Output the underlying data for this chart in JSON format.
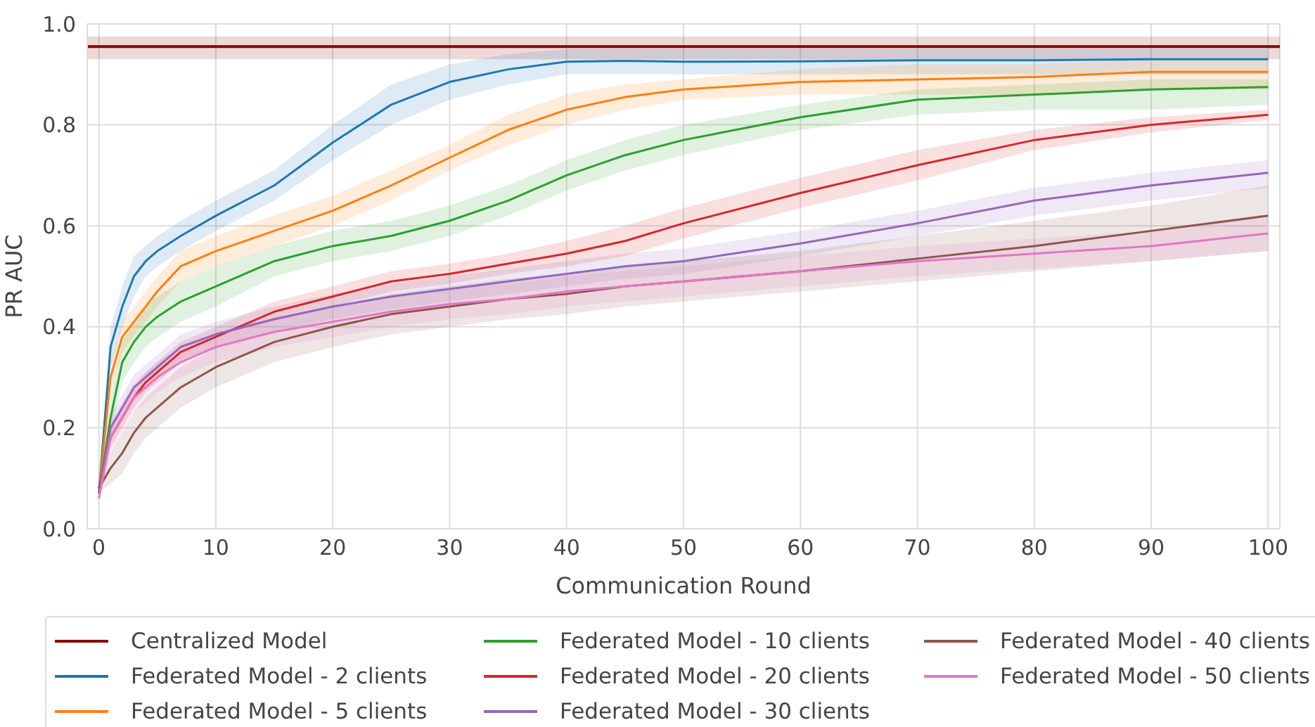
{
  "chart_data": {
    "type": "line",
    "xlabel": "Communication Round",
    "ylabel": "PR AUC",
    "xlim": [
      -1,
      101
    ],
    "xticks": [
      0,
      10,
      20,
      30,
      40,
      50,
      60,
      70,
      80,
      90,
      100
    ],
    "ylim": [
      0,
      1
    ],
    "yticks": [
      {
        "value": 0,
        "label": "0.0"
      },
      {
        "value": 0.2,
        "label": "0.2"
      },
      {
        "value": 0.4,
        "label": "0.4"
      },
      {
        "value": 0.6,
        "label": "0.6"
      },
      {
        "value": 0.8,
        "label": "0.8"
      },
      {
        "value": 1,
        "label": "1.0"
      }
    ],
    "grid": true,
    "legend": "bottom",
    "line_style": "solid",
    "marker": "none",
    "x": [
      0,
      1,
      2,
      3,
      4,
      5,
      7,
      10,
      15,
      20,
      25,
      30,
      35,
      40,
      45,
      50,
      60,
      70,
      80,
      90,
      100
    ],
    "series": [
      {
        "name": "Centralized Model",
        "color": "#8b0000",
        "x": [
          -1,
          101
        ],
        "values": [
          0.955,
          0.955
        ],
        "lower": [
          0.93,
          0.93
        ],
        "upper": [
          0.975,
          0.975
        ]
      },
      {
        "name": "Federated Model - 2 clients",
        "color": "#1f77b4",
        "values": [
          0.07,
          0.36,
          0.44,
          0.5,
          0.53,
          0.55,
          0.58,
          0.62,
          0.68,
          0.765,
          0.84,
          0.885,
          0.91,
          0.925,
          0.927,
          0.925,
          0.926,
          0.928,
          0.928,
          0.93,
          0.93
        ],
        "lower": [
          0.06,
          0.32,
          0.4,
          0.46,
          0.5,
          0.52,
          0.55,
          0.59,
          0.65,
          0.73,
          0.8,
          0.85,
          0.88,
          0.9,
          0.9,
          0.9,
          0.9,
          0.9,
          0.9,
          0.9,
          0.9
        ],
        "upper": [
          0.08,
          0.4,
          0.48,
          0.54,
          0.56,
          0.58,
          0.61,
          0.65,
          0.71,
          0.8,
          0.88,
          0.92,
          0.94,
          0.95,
          0.95,
          0.95,
          0.95,
          0.95,
          0.95,
          0.95,
          0.95
        ]
      },
      {
        "name": "Federated Model - 5 clients",
        "color": "#ff7f0e",
        "values": [
          0.07,
          0.3,
          0.38,
          0.41,
          0.44,
          0.47,
          0.52,
          0.55,
          0.59,
          0.63,
          0.68,
          0.735,
          0.79,
          0.83,
          0.855,
          0.87,
          0.885,
          0.89,
          0.895,
          0.905,
          0.905
        ],
        "lower": [
          0.06,
          0.27,
          0.35,
          0.38,
          0.41,
          0.44,
          0.49,
          0.52,
          0.56,
          0.6,
          0.65,
          0.71,
          0.76,
          0.8,
          0.83,
          0.85,
          0.86,
          0.86,
          0.86,
          0.87,
          0.87
        ],
        "upper": [
          0.08,
          0.33,
          0.41,
          0.44,
          0.47,
          0.5,
          0.55,
          0.58,
          0.62,
          0.66,
          0.71,
          0.76,
          0.82,
          0.86,
          0.88,
          0.89,
          0.91,
          0.92,
          0.92,
          0.93,
          0.93
        ]
      },
      {
        "name": "Federated Model - 10 clients",
        "color": "#2ca02c",
        "values": [
          0.07,
          0.22,
          0.33,
          0.37,
          0.4,
          0.42,
          0.45,
          0.48,
          0.53,
          0.56,
          0.58,
          0.61,
          0.65,
          0.7,
          0.74,
          0.77,
          0.815,
          0.85,
          0.86,
          0.87,
          0.875
        ],
        "lower": [
          0.06,
          0.19,
          0.29,
          0.33,
          0.36,
          0.38,
          0.41,
          0.44,
          0.5,
          0.53,
          0.55,
          0.58,
          0.62,
          0.67,
          0.71,
          0.74,
          0.79,
          0.82,
          0.83,
          0.83,
          0.84
        ],
        "upper": [
          0.08,
          0.26,
          0.37,
          0.41,
          0.44,
          0.46,
          0.49,
          0.52,
          0.56,
          0.59,
          0.61,
          0.64,
          0.68,
          0.73,
          0.77,
          0.8,
          0.84,
          0.87,
          0.88,
          0.89,
          0.89
        ]
      },
      {
        "name": "Federated Model - 20 clients",
        "color": "#d62728",
        "values": [
          0.08,
          0.18,
          0.22,
          0.26,
          0.29,
          0.31,
          0.35,
          0.38,
          0.43,
          0.46,
          0.49,
          0.505,
          0.525,
          0.545,
          0.57,
          0.605,
          0.665,
          0.72,
          0.77,
          0.8,
          0.82
        ],
        "lower": [
          0.07,
          0.16,
          0.2,
          0.24,
          0.27,
          0.29,
          0.33,
          0.36,
          0.41,
          0.44,
          0.47,
          0.485,
          0.505,
          0.52,
          0.54,
          0.575,
          0.635,
          0.69,
          0.75,
          0.785,
          0.81
        ],
        "upper": [
          0.09,
          0.2,
          0.24,
          0.28,
          0.31,
          0.33,
          0.37,
          0.4,
          0.45,
          0.48,
          0.51,
          0.525,
          0.545,
          0.57,
          0.6,
          0.635,
          0.695,
          0.75,
          0.79,
          0.815,
          0.83
        ]
      },
      {
        "name": "Federated Model - 30 clients",
        "color": "#9467bd",
        "values": [
          0.07,
          0.2,
          0.24,
          0.28,
          0.3,
          0.32,
          0.36,
          0.385,
          0.415,
          0.44,
          0.46,
          0.475,
          0.49,
          0.505,
          0.52,
          0.53,
          0.565,
          0.605,
          0.65,
          0.68,
          0.705
        ],
        "lower": [
          0.06,
          0.175,
          0.215,
          0.255,
          0.275,
          0.295,
          0.335,
          0.36,
          0.39,
          0.415,
          0.435,
          0.45,
          0.465,
          0.48,
          0.495,
          0.505,
          0.54,
          0.58,
          0.62,
          0.65,
          0.675
        ],
        "upper": [
          0.08,
          0.225,
          0.265,
          0.305,
          0.325,
          0.345,
          0.385,
          0.41,
          0.44,
          0.465,
          0.485,
          0.5,
          0.515,
          0.53,
          0.545,
          0.555,
          0.59,
          0.63,
          0.675,
          0.705,
          0.73
        ]
      },
      {
        "name": "Federated Model - 40 clients",
        "color": "#8c564b",
        "values": [
          0.08,
          0.12,
          0.15,
          0.19,
          0.22,
          0.24,
          0.28,
          0.32,
          0.37,
          0.4,
          0.425,
          0.44,
          0.455,
          0.465,
          0.48,
          0.49,
          0.51,
          0.535,
          0.56,
          0.59,
          0.62
        ],
        "lower": [
          0.07,
          0.09,
          0.11,
          0.15,
          0.18,
          0.2,
          0.24,
          0.28,
          0.33,
          0.36,
          0.385,
          0.4,
          0.415,
          0.425,
          0.44,
          0.45,
          0.47,
          0.49,
          0.51,
          0.53,
          0.55
        ],
        "upper": [
          0.09,
          0.15,
          0.19,
          0.23,
          0.26,
          0.28,
          0.32,
          0.36,
          0.41,
          0.44,
          0.465,
          0.48,
          0.495,
          0.505,
          0.52,
          0.53,
          0.55,
          0.58,
          0.61,
          0.64,
          0.68
        ]
      },
      {
        "name": "Federated Model - 50 clients",
        "color": "#e377c2",
        "values": [
          0.06,
          0.18,
          0.22,
          0.26,
          0.28,
          0.3,
          0.33,
          0.36,
          0.39,
          0.41,
          0.43,
          0.445,
          0.455,
          0.47,
          0.48,
          0.49,
          0.51,
          0.53,
          0.545,
          0.56,
          0.585
        ],
        "lower": [
          0.05,
          0.15,
          0.19,
          0.23,
          0.25,
          0.27,
          0.3,
          0.33,
          0.36,
          0.38,
          0.4,
          0.415,
          0.425,
          0.44,
          0.45,
          0.46,
          0.48,
          0.5,
          0.515,
          0.53,
          0.55
        ],
        "upper": [
          0.07,
          0.21,
          0.25,
          0.29,
          0.31,
          0.33,
          0.36,
          0.39,
          0.42,
          0.44,
          0.46,
          0.475,
          0.485,
          0.5,
          0.51,
          0.52,
          0.54,
          0.56,
          0.575,
          0.59,
          0.62
        ]
      }
    ]
  }
}
